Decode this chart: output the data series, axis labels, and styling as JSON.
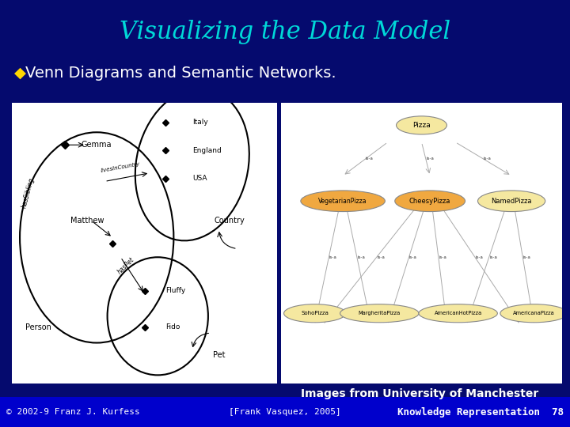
{
  "background_color": "#050a6e",
  "footer_bg_color": "#0000cc",
  "title": "Visualizing the Data Model",
  "title_color": "#00d8d8",
  "title_fontsize": 22,
  "bullet_symbol": "◆",
  "bullet_color": "#ffd700",
  "bullet_text": "Venn Diagrams and Semantic Networks.",
  "bullet_color_text": "#ffffff",
  "bullet_fontsize": 14,
  "footer_left": "© 2002-9 Franz J. Kurfess",
  "footer_center": "[Frank Vasquez, 2005]",
  "footer_right": "Knowledge Representation  78",
  "footer_color": "#ffffff",
  "footer_fontsize": 8,
  "caption": "Images from University of Manchester",
  "caption_color": "#ffffff",
  "caption_fontsize": 10
}
